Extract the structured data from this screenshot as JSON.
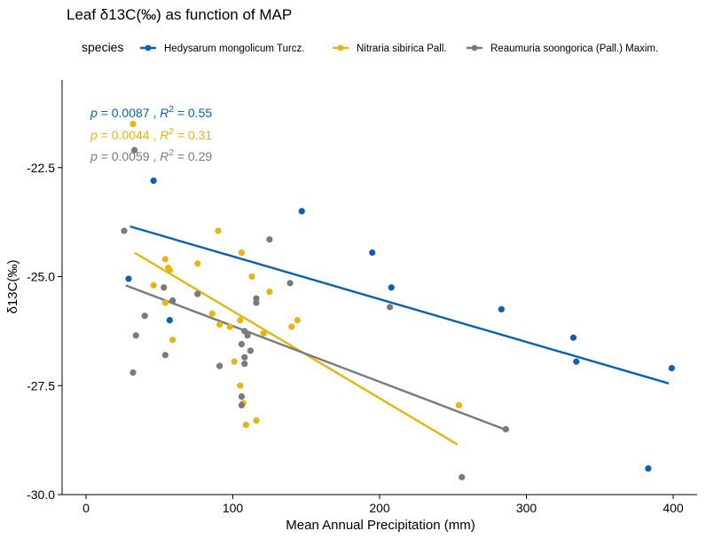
{
  "chart_data": {
    "type": "scatter",
    "title": "Leaf δ13C(‰) as function of MAP",
    "xlabel": "Mean Annual Precipitation (mm)",
    "ylabel": "δ13C(‰)",
    "xlim": [
      -10,
      415
    ],
    "ylim": [
      -30,
      -21.3
    ],
    "xticks": [
      0,
      100,
      200,
      300,
      400
    ],
    "yticks": [
      -30.0,
      -27.5,
      -25.0,
      -22.5
    ],
    "ytick_labels": [
      "-30.0",
      "-27.5",
      "-25.0",
      "-22.5"
    ],
    "grid": false,
    "legend": {
      "title": "species",
      "placement": "top",
      "entries": [
        "Hedysarum mongolicum Turcz.",
        "Nitraria sibirica Pall.",
        "Reaumuria soongorica (Pall.) Maxim."
      ]
    },
    "series": [
      {
        "name": "Hedysarum mongolicum Turcz.",
        "color": "#0c5fb3",
        "points": [
          [
            46,
            -22.8
          ],
          [
            29,
            -25.05
          ],
          [
            57,
            -26.0
          ],
          [
            147,
            -23.5
          ],
          [
            195,
            -24.45
          ],
          [
            208,
            -25.25
          ],
          [
            283,
            -25.75
          ],
          [
            332,
            -26.4
          ],
          [
            334,
            -26.95
          ],
          [
            399,
            -27.1
          ],
          [
            383,
            -29.4
          ]
        ],
        "fit": [
          [
            30,
            -23.85
          ],
          [
            397,
            -27.45
          ]
        ],
        "stats": {
          "p_label": "p",
          "p": "= 0.0087 ,",
          "r_label": "R",
          "r_sup": "2",
          "r": "= 0.55"
        }
      },
      {
        "name": "Nitraria sibirica Pall.",
        "color": "#e5b513",
        "points": [
          [
            32,
            -21.5
          ],
          [
            46,
            -25.2
          ],
          [
            54,
            -24.6
          ],
          [
            56,
            -24.8
          ],
          [
            57,
            -24.85
          ],
          [
            54,
            -25.6
          ],
          [
            59,
            -26.45
          ],
          [
            76,
            -24.7
          ],
          [
            86,
            -25.85
          ],
          [
            90,
            -23.95
          ],
          [
            91,
            -26.1
          ],
          [
            98,
            -26.15
          ],
          [
            101,
            -26.95
          ],
          [
            105,
            -26.0
          ],
          [
            105,
            -27.5
          ],
          [
            107,
            -27.9
          ],
          [
            106,
            -24.45
          ],
          [
            109,
            -28.4
          ],
          [
            113,
            -25.0
          ],
          [
            116,
            -28.3
          ],
          [
            121,
            -26.3
          ],
          [
            125,
            -25.35
          ],
          [
            140,
            -26.15
          ],
          [
            144,
            -26.0
          ],
          [
            254,
            -27.95
          ]
        ],
        "fit": [
          [
            33,
            -24.45
          ],
          [
            253,
            -28.85
          ]
        ],
        "stats": {
          "p_label": "p",
          "p": "= 0.0044 ,",
          "r_label": "R",
          "r_sup": "2",
          "r": "= 0.31"
        }
      },
      {
        "name": "Reaumuria soongorica (Pall.) Maxim.",
        "color": "#7a7a7a",
        "points": [
          [
            26,
            -23.95
          ],
          [
            33,
            -22.1
          ],
          [
            32,
            -27.2
          ],
          [
            34,
            -26.35
          ],
          [
            40,
            -25.9
          ],
          [
            53,
            -25.25
          ],
          [
            54,
            -26.8
          ],
          [
            59,
            -25.55
          ],
          [
            76,
            -25.4
          ],
          [
            91,
            -27.05
          ],
          [
            106,
            -26.55
          ],
          [
            106,
            -27.75
          ],
          [
            106,
            -27.95
          ],
          [
            108,
            -26.25
          ],
          [
            108,
            -26.85
          ],
          [
            108,
            -27.0
          ],
          [
            110,
            -26.35
          ],
          [
            112,
            -26.7
          ],
          [
            116,
            -25.6
          ],
          [
            116,
            -25.5
          ],
          [
            125,
            -24.15
          ],
          [
            139,
            -25.15
          ],
          [
            207,
            -25.7
          ],
          [
            256,
            -29.6
          ],
          [
            286,
            -28.5
          ]
        ],
        "fit": [
          [
            27,
            -25.2
          ],
          [
            285,
            -28.5
          ]
        ],
        "stats": {
          "p_label": "p",
          "p": "= 0.0059 ,",
          "r_label": "R",
          "r_sup": "2",
          "r": "= 0.29"
        }
      }
    ]
  }
}
